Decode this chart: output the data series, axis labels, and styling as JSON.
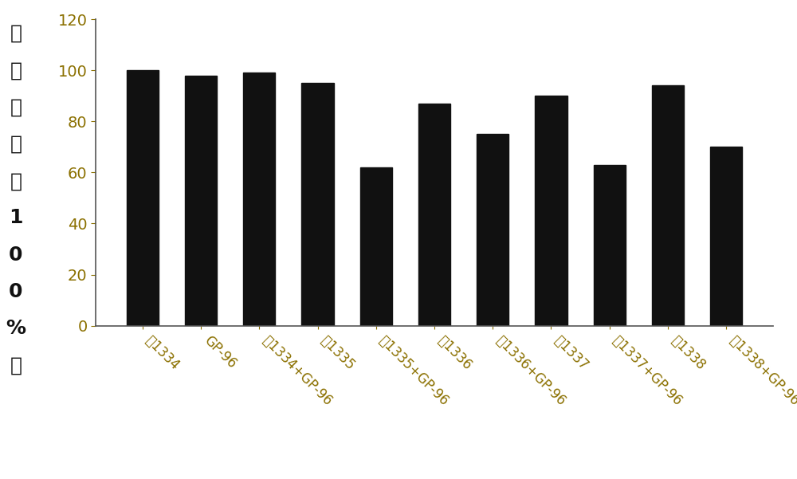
{
  "categories": [
    "讽1334",
    "GP-96",
    "讽1334+GP-96",
    "讽1335",
    "讽1335+GP-96",
    "讽1336",
    "讽1336+GP-96",
    "讽1337",
    "讽1337+GP-96",
    "讽1338",
    "讽1338+GP-96"
  ],
  "values": [
    100,
    98,
    99,
    95,
    62,
    87,
    75,
    90,
    63,
    94,
    70
  ],
  "bar_color": "#111111",
  "ylabel_chars": [
    "细",
    "胞",
    "活",
    "性",
    "（",
    "1",
    "0",
    "0",
    "%",
    "）"
  ],
  "ylim": [
    0,
    120
  ],
  "yticks": [
    0,
    20,
    40,
    60,
    80,
    100,
    120
  ],
  "background_color": "#ffffff",
  "bar_width": 0.55,
  "tick_label_color": "#8B7000",
  "ylabel_color": "#111111",
  "xlabel_color": "#8B7000"
}
